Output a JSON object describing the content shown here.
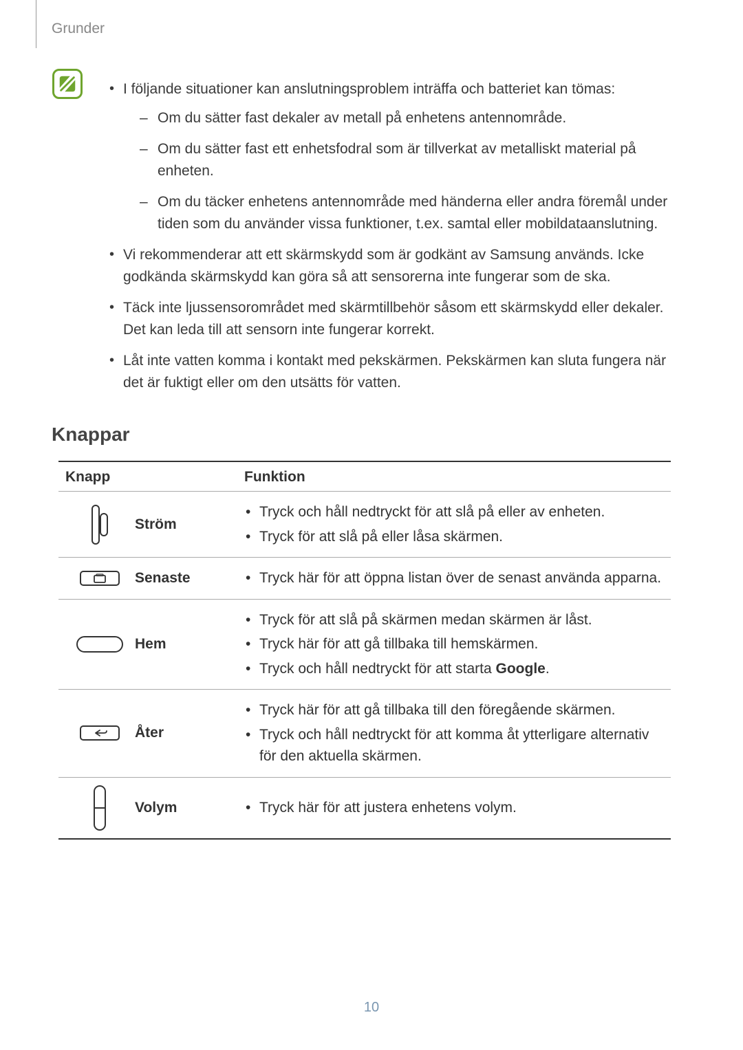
{
  "breadcrumb": "Grunder",
  "notes": {
    "intro": "I följande situationer kan anslutningsproblem inträffa och batteriet kan tömas:",
    "sub": [
      "Om du sätter fast dekaler av metall på enhetens antennområde.",
      "Om du sätter fast ett enhetsfodral som är tillverkat av metalliskt material på enheten.",
      "Om du täcker enhetens antennområde med händerna eller andra föremål under tiden som du använder vissa funktioner, t.ex. samtal eller mobildataanslutning."
    ],
    "more": [
      "Vi rekommenderar att ett skärmskydd som är godkänt av Samsung används. Icke godkända skärmskydd kan göra så att sensorerna inte fungerar som de ska.",
      "Täck inte ljussensorområdet med skärmtillbehör såsom ett skärmskydd eller dekaler. Det kan leda till att sensorn inte fungerar korrekt.",
      "Låt inte vatten komma i kontakt med pekskärmen. Pekskärmen kan sluta fungera när det är fuktigt eller om den utsätts för vatten."
    ]
  },
  "section_title": "Knappar",
  "table": {
    "headers": {
      "knapp": "Knapp",
      "funktion": "Funktion"
    },
    "rows": [
      {
        "icon": "power",
        "label": "Ström",
        "funcs": [
          "Tryck och håll nedtryckt för att slå på eller av enheten.",
          "Tryck för att slå på eller låsa skärmen."
        ]
      },
      {
        "icon": "recent",
        "label": "Senaste",
        "funcs": [
          "Tryck här för att öppna listan över de senast använda apparna."
        ]
      },
      {
        "icon": "home",
        "label": "Hem",
        "funcs": [
          "Tryck för att slå på skärmen medan skärmen är låst.",
          "Tryck här för att gå tillbaka till hemskärmen.",
          "Tryck och håll nedtryckt för att starta <b>Google</b>."
        ]
      },
      {
        "icon": "back",
        "label": "Åter",
        "funcs": [
          "Tryck här för att gå tillbaka till den föregående skärmen.",
          "Tryck och håll nedtryckt för att komma åt ytterligare alternativ för den aktuella skärmen."
        ]
      },
      {
        "icon": "volume",
        "label": "Volym",
        "funcs": [
          "Tryck här för att justera enhetens volym."
        ]
      }
    ]
  },
  "page_number": "10",
  "colors": {
    "note_icon_border": "#6fa52e",
    "note_icon_fill": "#6fa52e",
    "page_num": "#7a96b0",
    "text": "#3a3a3a",
    "breadcrumb": "#888888",
    "rule_heavy": "#333333",
    "rule_light": "#aaaaaa"
  }
}
